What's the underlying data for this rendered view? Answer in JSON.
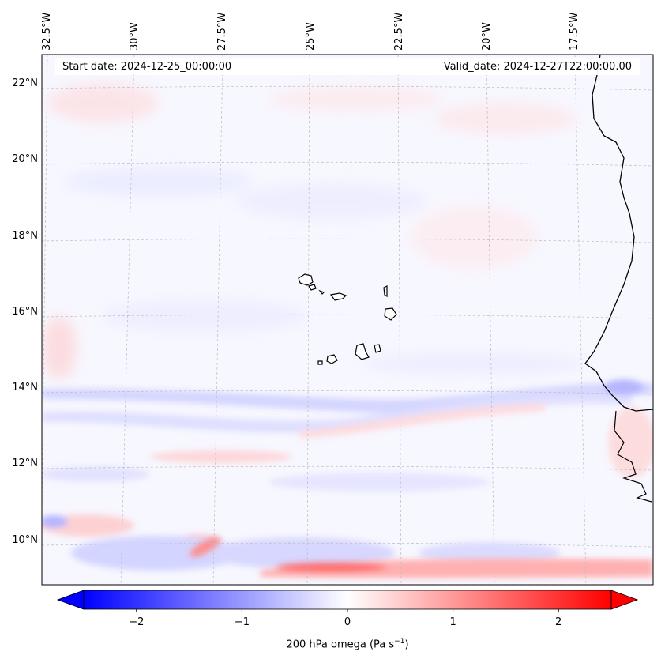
{
  "map": {
    "projection_labels": {
      "longitudes": [
        "32.5°W",
        "30°W",
        "27.5°W",
        "25°W",
        "22.5°W",
        "20°W",
        "17.5°W"
      ],
      "latitudes": [
        "22°N",
        "20°N",
        "18°N",
        "16°N",
        "14°N",
        "12°N",
        "10°N"
      ]
    },
    "start_date": "Start date: 2024-12-25_00:00:00",
    "valid_date": "Valid_date: 2024-12-27T22:00:00.00",
    "colors": {
      "negative": "#0000ff",
      "neutral": "#ffffff",
      "positive": "#ff0000",
      "coastline": "#000000",
      "gridline": "#bbbbbb"
    }
  },
  "colorbar": {
    "ticks": [
      "−2",
      "−1",
      "0",
      "1",
      "2"
    ],
    "tick_values": [
      -2,
      -1,
      0,
      1,
      2
    ],
    "range": [
      -2.5,
      2.5
    ],
    "label_main": "200 hPa omega (Pa s",
    "label_exp": "−1",
    "label_close": ")"
  }
}
